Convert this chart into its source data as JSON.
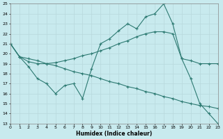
{
  "xlabel": "Humidex (Indice chaleur)",
  "xlim": [
    0,
    23
  ],
  "ylim": [
    13,
    25
  ],
  "yticks": [
    13,
    14,
    15,
    16,
    17,
    18,
    19,
    20,
    21,
    22,
    23,
    24,
    25
  ],
  "xticks": [
    0,
    1,
    2,
    3,
    4,
    5,
    6,
    7,
    8,
    9,
    10,
    11,
    12,
    13,
    14,
    15,
    16,
    17,
    18,
    19,
    20,
    21,
    22,
    23
  ],
  "bg_color": "#c8eaee",
  "grid_color": "#b8d8dc",
  "line_color": "#2d7a72",
  "line1_x": [
    0,
    1,
    2,
    3,
    4,
    5,
    6,
    7,
    8,
    9,
    10,
    11,
    12,
    13,
    14,
    15,
    16,
    17,
    18,
    19,
    20,
    21,
    22,
    23
  ],
  "line1_y": [
    21.0,
    19.7,
    19.2,
    19.0,
    19.0,
    19.1,
    19.3,
    19.5,
    19.8,
    20.0,
    20.3,
    20.6,
    21.0,
    21.3,
    21.7,
    22.0,
    22.2,
    22.2,
    22.0,
    19.5,
    19.3,
    19.0,
    19.0,
    19.0
  ],
  "line2_x": [
    0,
    1,
    2,
    3,
    4,
    5,
    6,
    7,
    8,
    9,
    10,
    11,
    12,
    13,
    14,
    15,
    16,
    17,
    18,
    19,
    20,
    21,
    22,
    23
  ],
  "line2_y": [
    21.0,
    19.7,
    18.7,
    17.5,
    17.0,
    16.0,
    16.8,
    17.0,
    15.5,
    18.5,
    21.0,
    21.5,
    22.3,
    23.0,
    22.5,
    23.7,
    24.0,
    25.0,
    23.0,
    19.5,
    17.5,
    15.0,
    14.0,
    13.0
  ],
  "line3_x": [
    0,
    1,
    2,
    3,
    4,
    5,
    6,
    7,
    8,
    9,
    10,
    11,
    12,
    13,
    14,
    15,
    16,
    17,
    18,
    19,
    20,
    21,
    22,
    23
  ],
  "line3_y": [
    21.0,
    19.7,
    19.5,
    19.3,
    19.0,
    18.8,
    18.5,
    18.2,
    18.0,
    17.8,
    17.5,
    17.2,
    17.0,
    16.7,
    16.5,
    16.2,
    16.0,
    15.7,
    15.5,
    15.2,
    15.0,
    14.8,
    14.7,
    14.5
  ]
}
